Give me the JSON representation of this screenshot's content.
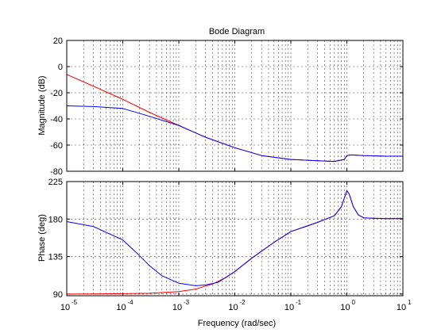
{
  "chart_data": {
    "type": "line",
    "title": "Bode Diagram",
    "xlabel": "Frequency  (rad/sec)",
    "x_scale": "log",
    "xlim": [
      1e-05,
      10
    ],
    "x_ticks": [
      {
        "base": "10",
        "exp": "-5"
      },
      {
        "base": "10",
        "exp": "-4"
      },
      {
        "base": "10",
        "exp": "-3"
      },
      {
        "base": "10",
        "exp": "-2"
      },
      {
        "base": "10",
        "exp": "-1"
      },
      {
        "base": "10",
        "exp": "0"
      },
      {
        "base": "10",
        "exp": "1"
      }
    ],
    "grid": true,
    "subplots": [
      {
        "name": "magnitude",
        "ylabel": "Magnitude (dB)",
        "ylim": [
          -80,
          20
        ],
        "y_ticks": [
          "20",
          "0",
          "-20",
          "-40",
          "-60",
          "-80"
        ],
        "series": [
          {
            "color": "#ff0000",
            "x": [
              1e-05,
              3e-05,
              0.0001,
              0.0003,
              0.001,
              0.003,
              0.01,
              0.03,
              0.1,
              0.3,
              0.6,
              0.9,
              1.0,
              1.2,
              2,
              5,
              10
            ],
            "y": [
              -6,
              -15,
              -25,
              -35,
              -45,
              -54,
              -62,
              -68,
              -71,
              -72,
              -72.5,
              -71,
              -68,
              -67.5,
              -68,
              -68.5,
              -68.5
            ]
          },
          {
            "color": "#0000ff",
            "x": [
              1e-05,
              3e-05,
              0.0001,
              0.0003,
              0.001,
              0.003,
              0.01,
              0.03,
              0.1,
              0.3,
              0.6,
              0.9,
              1.0,
              1.2,
              2,
              5,
              10
            ],
            "y": [
              -30,
              -30.5,
              -32,
              -38,
              -45,
              -54,
              -62,
              -68,
              -71,
              -72,
              -72.5,
              -71,
              -68,
              -67.5,
              -68,
              -68.5,
              -68.5
            ]
          }
        ]
      },
      {
        "name": "phase",
        "ylabel": "Phase (deg)",
        "ylim": [
          88,
          225
        ],
        "y_ticks": [
          "225",
          "180",
          "135",
          "90"
        ],
        "series": [
          {
            "color": "#ff0000",
            "x": [
              1e-05,
              0.0001,
              0.0003,
              0.001,
              0.002,
              0.004,
              0.007,
              0.01,
              0.02,
              0.05,
              0.1,
              0.3,
              0.6,
              0.8,
              0.9,
              1.0,
              1.1,
              1.3,
              1.6,
              2,
              3,
              5,
              10
            ],
            "y": [
              90,
              90.5,
              91,
              93,
              96,
              102,
              110,
              117,
              133,
              152,
              165,
              176,
              184,
              195,
              205,
              214,
              210,
              195,
              185,
              181.5,
              181,
              180.5,
              180.5
            ]
          },
          {
            "color": "#0000ff",
            "x": [
              1e-05,
              3e-05,
              0.0001,
              0.0002,
              0.0003,
              0.0005,
              0.001,
              0.002,
              0.003,
              0.005,
              0.01,
              0.02,
              0.05,
              0.1,
              0.3,
              0.6,
              0.8,
              0.9,
              1.0,
              1.1,
              1.3,
              1.6,
              2,
              3,
              5,
              10
            ],
            "y": [
              177,
              171,
              155,
              136,
              124,
              112,
              103,
              100,
              101,
              104,
              117,
              133,
              152,
              165,
              176,
              184,
              195,
              205,
              214,
              210,
              195,
              185,
              181.5,
              181,
              180.5,
              180.5
            ]
          }
        ]
      }
    ]
  }
}
